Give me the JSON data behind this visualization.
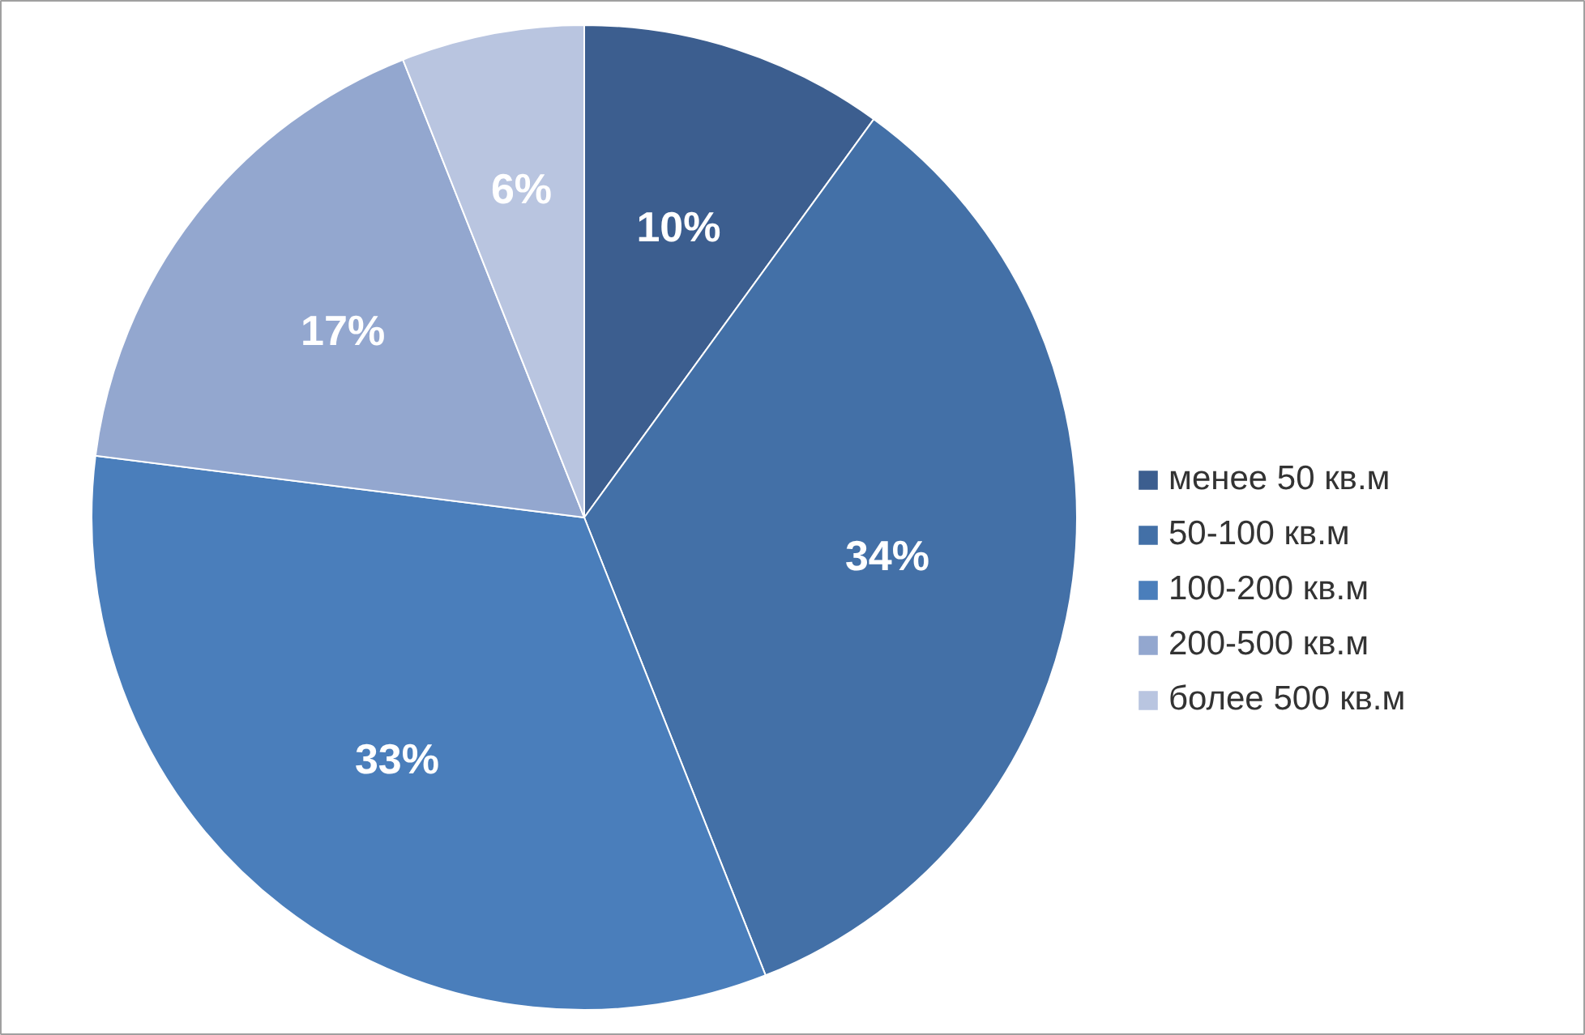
{
  "chart_data": {
    "type": "pie",
    "categories": [
      "менее 50 кв.м",
      "50-100 кв.м",
      "100-200 кв.м",
      "200-500 кв.м",
      "более 500 кв.м"
    ],
    "values": [
      10,
      34,
      33,
      17,
      6
    ],
    "value_labels": [
      "10%",
      "34%",
      "33%",
      "17%",
      "6%"
    ],
    "colors": [
      "#3c5e8f",
      "#4370a7",
      "#4a7ebb",
      "#93a7cf",
      "#b9c5e0"
    ],
    "legend": "right"
  }
}
